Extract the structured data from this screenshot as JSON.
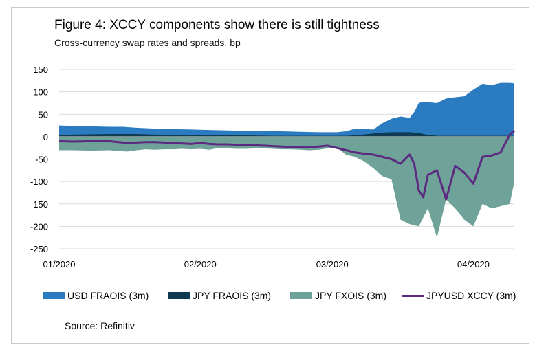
{
  "title": "Figure 4: XCCY components show there is still tightness",
  "subtitle": "Cross-currency swap rates and spreads, bp",
  "source": "Source: Refinitiv",
  "colors": {
    "usd_fraois": "#2a7bbf",
    "jpy_fraois": "#0f3b52",
    "jpy_fxois": "#6fa39a",
    "jpyusd_xccy": "#5c2a80",
    "grid": "#d9d9d9",
    "axis": "#bfbfbf"
  },
  "chart_data": {
    "type": "area",
    "ylim": [
      -250,
      150
    ],
    "yticks": [
      150,
      100,
      50,
      0,
      -50,
      -100,
      -150,
      -200,
      -250
    ],
    "xticks": [
      {
        "label": "01/2020",
        "x": 1
      },
      {
        "label": "02/2020",
        "x": 32
      },
      {
        "label": "03/2020",
        "x": 61
      },
      {
        "label": "04/2020",
        "x": 92
      }
    ],
    "xlim": [
      1,
      101
    ],
    "grid": true,
    "legend_position": "bottom",
    "series": [
      {
        "name": "USD FRAOIS (3m)",
        "kind": "area",
        "x": [
          1,
          4,
          8,
          12,
          15,
          18,
          22,
          26,
          30,
          34,
          38,
          42,
          46,
          50,
          54,
          58,
          60,
          62,
          64,
          66,
          68,
          70,
          72,
          74,
          76,
          78,
          79,
          80,
          81,
          82,
          84,
          86,
          88,
          90,
          92,
          94,
          96,
          98,
          100,
          101
        ],
        "y": [
          25,
          24,
          23,
          22,
          22,
          20,
          18,
          17,
          16,
          15,
          14,
          13,
          13,
          12,
          11,
          10,
          10,
          10,
          12,
          18,
          17,
          16,
          30,
          40,
          45,
          42,
          55,
          75,
          78,
          77,
          75,
          85,
          88,
          90,
          105,
          118,
          115,
          120,
          120,
          119
        ]
      },
      {
        "name": "JPY FRAOIS (3m)",
        "kind": "area",
        "x": [
          1,
          6,
          12,
          18,
          24,
          30,
          36,
          42,
          48,
          54,
          60,
          64,
          66,
          68,
          70,
          72,
          74,
          76,
          78,
          80,
          82,
          84,
          86,
          88,
          90,
          92,
          94,
          96,
          98,
          100,
          101
        ],
        "y": [
          4,
          5,
          6,
          6,
          4,
          3,
          3,
          3,
          2,
          2,
          2,
          2,
          3,
          5,
          7,
          9,
          10,
          10,
          10,
          8,
          4,
          2,
          2,
          2,
          2,
          2,
          2,
          2,
          2,
          2,
          2
        ]
      },
      {
        "name": "JPY FXOIS (3m)",
        "kind": "area",
        "x": [
          1,
          4,
          8,
          12,
          14,
          16,
          18,
          20,
          22,
          24,
          26,
          28,
          30,
          32,
          34,
          36,
          38,
          40,
          42,
          44,
          46,
          48,
          50,
          52,
          54,
          56,
          58,
          60,
          62,
          64,
          66,
          68,
          70,
          72,
          74,
          76,
          78,
          80,
          82,
          84,
          86,
          88,
          90,
          92,
          94,
          96,
          98,
          100,
          101
        ],
        "y": [
          -30,
          -30,
          -31,
          -30,
          -32,
          -33,
          -30,
          -28,
          -29,
          -28,
          -28,
          -27,
          -28,
          -27,
          -29,
          -25,
          -26,
          -27,
          -27,
          -26,
          -26,
          -27,
          -28,
          -28,
          -29,
          -30,
          -29,
          -26,
          -24,
          -40,
          -45,
          -55,
          -70,
          -88,
          -95,
          -185,
          -195,
          -200,
          -160,
          -225,
          -140,
          -160,
          -185,
          -200,
          -150,
          -160,
          -155,
          -150,
          -100
        ]
      },
      {
        "name": "JPYUSD XCCY (3m)",
        "kind": "line",
        "x": [
          1,
          4,
          8,
          12,
          14,
          16,
          18,
          20,
          22,
          24,
          26,
          28,
          30,
          32,
          34,
          36,
          38,
          40,
          42,
          44,
          46,
          48,
          50,
          52,
          54,
          56,
          58,
          60,
          62,
          64,
          66,
          68,
          70,
          72,
          74,
          76,
          78,
          79,
          80,
          81,
          82,
          84,
          86,
          88,
          90,
          92,
          94,
          96,
          98,
          100,
          101
        ],
        "y": [
          -10,
          -11,
          -10,
          -10,
          -12,
          -14,
          -13,
          -12,
          -12,
          -13,
          -14,
          -15,
          -16,
          -14,
          -16,
          -17,
          -17,
          -18,
          -18,
          -19,
          -20,
          -21,
          -22,
          -23,
          -24,
          -23,
          -22,
          -20,
          -25,
          -30,
          -35,
          -38,
          -40,
          -45,
          -50,
          -60,
          -40,
          -60,
          -120,
          -135,
          -85,
          -75,
          -140,
          -65,
          -80,
          -105,
          -45,
          -42,
          -35,
          5,
          13
        ]
      }
    ]
  },
  "legend": [
    {
      "label": "USD FRAOIS (3m)",
      "kind": "swatch",
      "color": "#2a7bbf"
    },
    {
      "label": "JPY FRAOIS (3m)",
      "kind": "swatch",
      "color": "#0f3b52"
    },
    {
      "label": "JPY FXOIS (3m)",
      "kind": "swatch",
      "color": "#6fa39a"
    },
    {
      "label": "JPYUSD XCCY (3m)",
      "kind": "line",
      "color": "#5c2a80"
    }
  ]
}
